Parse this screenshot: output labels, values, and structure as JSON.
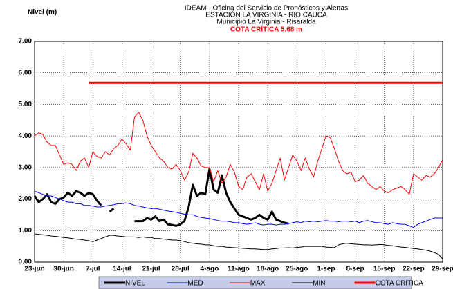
{
  "chart_data": {
    "type": "line",
    "y_label": "Nivel (m)",
    "title_lines": [
      "IDEAM - Oficina del Servicio de Pronósticos y Alertas",
      "ESTACIÓN  LA VIRGINIA - RIO CAUCA",
      "Municipio La Virginia - Risaralda"
    ],
    "annotation": "COTA CRÍTICA 5.68 m",
    "categories": [
      "23-jun",
      null,
      null,
      null,
      null,
      null,
      null,
      "30-jun",
      null,
      null,
      null,
      null,
      null,
      null,
      "7-jul",
      null,
      null,
      null,
      null,
      null,
      null,
      "14-jul",
      null,
      null,
      null,
      null,
      null,
      null,
      "21-jul",
      null,
      null,
      null,
      null,
      null,
      null,
      "28-jul",
      null,
      null,
      null,
      null,
      null,
      null,
      "4-ago",
      null,
      null,
      null,
      null,
      null,
      null,
      "11-ago",
      null,
      null,
      null,
      null,
      null,
      null,
      "18-ago",
      null,
      null,
      null,
      null,
      null,
      null,
      "25-ago",
      null,
      null,
      null,
      null,
      null,
      null,
      "1-sep",
      null,
      null,
      null,
      null,
      null,
      null,
      "8-sep",
      null,
      null,
      null,
      null,
      null,
      null,
      "15-sep",
      null,
      null,
      null,
      null,
      null,
      null,
      "22-sep",
      null,
      null,
      null,
      null,
      null,
      null,
      "29-sep"
    ],
    "ylim": [
      0,
      7
    ],
    "yticks": [
      {
        "value": 0,
        "label": "0.00"
      },
      {
        "value": 1,
        "label": "1.00"
      },
      {
        "value": 2,
        "label": "2.00"
      },
      {
        "value": 3,
        "label": "3.00"
      },
      {
        "value": 4,
        "label": "4.00"
      },
      {
        "value": 5,
        "label": "5.00"
      },
      {
        "value": 6,
        "label": "6.00"
      },
      {
        "value": 7,
        "label": "7.00"
      }
    ],
    "grid": true,
    "legend": "bottom",
    "series": [
      {
        "name": "NIVEL",
        "color": "#000000",
        "line_width": 3,
        "values": [
          2.1,
          1.9,
          2.0,
          2.15,
          1.9,
          1.85,
          2.0,
          2.05,
          2.2,
          2.1,
          2.25,
          2.2,
          2.1,
          2.2,
          2.15,
          1.95,
          1.8,
          null,
          1.6,
          1.7,
          null,
          null,
          null,
          null,
          1.3,
          1.3,
          1.3,
          1.4,
          1.35,
          1.45,
          1.3,
          1.35,
          1.2,
          1.18,
          1.15,
          1.2,
          1.3,
          1.75,
          2.45,
          2.1,
          2.2,
          2.15,
          2.95,
          2.3,
          2.2,
          2.75,
          2.2,
          1.9,
          1.7,
          1.5,
          1.45,
          1.4,
          1.35,
          1.4,
          1.5,
          1.4,
          1.35,
          1.6,
          1.35,
          1.3,
          1.25,
          1.22,
          null,
          null,
          null,
          null,
          null,
          null,
          null,
          null,
          null,
          null,
          null,
          null,
          null,
          null,
          null,
          null,
          null,
          null,
          null,
          null,
          null,
          null,
          null,
          null,
          null,
          null,
          null,
          null,
          null,
          null,
          null,
          null,
          null,
          null,
          null,
          null,
          null
        ]
      },
      {
        "name": "MED",
        "color": "#0000ff",
        "line_width": 1,
        "values": [
          2.25,
          2.2,
          2.15,
          2.1,
          2.1,
          2.05,
          2.0,
          1.95,
          1.9,
          1.9,
          1.85,
          1.85,
          1.8,
          1.8,
          1.78,
          1.75,
          1.75,
          1.78,
          1.8,
          1.82,
          1.85,
          1.85,
          1.88,
          1.85,
          1.8,
          1.78,
          1.75,
          1.72,
          1.7,
          1.7,
          1.68,
          1.65,
          1.62,
          1.6,
          1.58,
          1.55,
          1.52,
          1.5,
          1.5,
          1.45,
          1.42,
          1.4,
          1.38,
          1.35,
          1.32,
          1.3,
          1.3,
          1.28,
          1.25,
          1.25,
          1.22,
          1.2,
          1.22,
          1.25,
          1.2,
          1.18,
          1.2,
          1.2,
          1.18,
          1.2,
          1.2,
          1.22,
          1.25,
          1.28,
          1.25,
          1.3,
          1.28,
          1.3,
          1.28,
          1.3,
          1.32,
          1.3,
          1.3,
          1.28,
          1.3,
          1.3,
          1.28,
          1.3,
          1.25,
          1.3,
          1.32,
          1.28,
          1.25,
          1.25,
          1.22,
          1.2,
          1.25,
          1.22,
          1.2,
          1.2,
          1.15,
          1.1,
          1.2,
          1.25,
          1.3,
          1.35,
          1.4,
          1.4,
          1.4
        ]
      },
      {
        "name": "MAX",
        "color": "#ff0000",
        "line_width": 1,
        "values": [
          4.0,
          4.1,
          4.05,
          3.8,
          3.7,
          3.7,
          3.4,
          3.1,
          3.15,
          3.1,
          2.9,
          3.2,
          3.3,
          3.0,
          3.5,
          3.35,
          3.3,
          3.5,
          3.4,
          3.6,
          3.7,
          3.9,
          3.75,
          3.55,
          4.6,
          4.75,
          4.5,
          4.0,
          3.7,
          3.5,
          3.3,
          3.2,
          3.0,
          2.95,
          3.1,
          2.9,
          2.6,
          2.85,
          3.45,
          3.3,
          3.05,
          3.0,
          3.0,
          2.55,
          2.9,
          2.5,
          2.7,
          3.1,
          2.85,
          2.4,
          2.3,
          2.7,
          2.8,
          2.55,
          2.3,
          2.8,
          2.25,
          2.5,
          2.9,
          3.3,
          2.6,
          3.0,
          3.4,
          3.2,
          2.9,
          3.3,
          2.95,
          2.7,
          3.2,
          3.6,
          4.0,
          3.95,
          3.6,
          3.2,
          2.9,
          2.8,
          2.85,
          2.55,
          2.6,
          2.75,
          2.5,
          2.4,
          2.3,
          2.4,
          2.25,
          2.2,
          2.3,
          2.35,
          2.4,
          2.3,
          2.15,
          2.8,
          2.7,
          2.6,
          2.75,
          2.7,
          2.8,
          3.0,
          3.25
        ]
      },
      {
        "name": "MIN",
        "color": "#000000",
        "line_width": 1,
        "values": [
          0.9,
          0.88,
          0.87,
          0.85,
          0.83,
          0.82,
          0.8,
          0.78,
          0.77,
          0.75,
          0.73,
          0.72,
          0.7,
          0.68,
          0.65,
          0.7,
          0.75,
          0.8,
          0.85,
          0.85,
          0.83,
          0.82,
          0.8,
          0.8,
          0.8,
          0.78,
          0.8,
          0.78,
          0.78,
          0.75,
          0.75,
          0.73,
          0.72,
          0.7,
          0.7,
          0.68,
          0.65,
          0.62,
          0.6,
          0.58,
          0.57,
          0.55,
          0.55,
          0.52,
          0.5,
          0.5,
          0.48,
          0.47,
          0.46,
          0.45,
          0.44,
          0.43,
          0.42,
          0.42,
          0.41,
          0.4,
          0.4,
          0.42,
          0.43,
          0.45,
          0.45,
          0.46,
          0.45,
          0.47,
          0.48,
          0.5,
          0.5,
          0.5,
          0.5,
          0.5,
          0.48,
          0.47,
          0.46,
          0.55,
          0.58,
          0.6,
          0.58,
          0.57,
          0.56,
          0.55,
          0.55,
          0.54,
          0.55,
          0.56,
          0.55,
          0.53,
          0.52,
          0.5,
          0.48,
          0.47,
          0.45,
          0.43,
          0.42,
          0.4,
          0.38,
          0.35,
          0.3,
          0.25,
          0.1
        ]
      },
      {
        "name": "COTA CRITICA",
        "color": "#ff0000",
        "line_width": 3,
        "values": [
          null,
          null,
          null,
          null,
          null,
          null,
          null,
          null,
          null,
          null,
          null,
          null,
          null,
          5.68,
          5.68,
          5.68,
          5.68,
          5.68,
          5.68,
          5.68,
          5.68,
          5.68,
          5.68,
          5.68,
          5.68,
          5.68,
          5.68,
          5.68,
          5.68,
          5.68,
          5.68,
          5.68,
          5.68,
          5.68,
          5.68,
          5.68,
          5.68,
          5.68,
          5.68,
          5.68,
          5.68,
          5.68,
          5.68,
          5.68,
          5.68,
          5.68,
          5.68,
          5.68,
          5.68,
          5.68,
          5.68,
          5.68,
          5.68,
          5.68,
          5.68,
          5.68,
          5.68,
          5.68,
          5.68,
          5.68,
          5.68,
          5.68,
          5.68,
          5.68,
          5.68,
          5.68,
          5.68,
          5.68,
          5.68,
          5.68,
          5.68,
          5.68,
          5.68,
          5.68,
          5.68,
          5.68,
          5.68,
          5.68,
          5.68,
          5.68,
          5.68,
          5.68,
          5.68,
          5.68,
          5.68,
          5.68,
          5.68,
          5.68,
          5.68,
          5.68,
          5.68,
          5.68,
          5.68,
          5.68,
          5.68,
          5.68,
          5.68,
          5.68,
          5.68
        ]
      }
    ]
  }
}
